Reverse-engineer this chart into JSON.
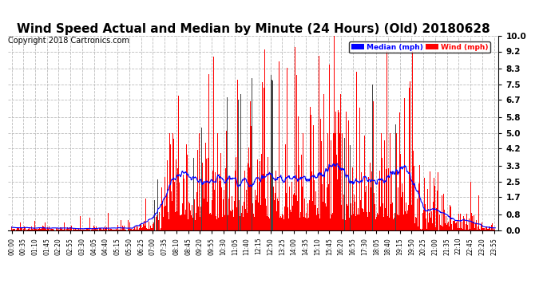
{
  "title": "Wind Speed Actual and Median by Minute (24 Hours) (Old) 20180628",
  "copyright": "Copyright 2018 Cartronics.com",
  "yticks": [
    0.0,
    0.8,
    1.7,
    2.5,
    3.3,
    4.2,
    5.0,
    5.8,
    6.7,
    7.5,
    8.3,
    9.2,
    10.0
  ],
  "ylim": [
    0.0,
    10.0
  ],
  "legend_median_label": "Median (mph)",
  "legend_wind_label": "Wind (mph)",
  "legend_median_color": "#0000ff",
  "legend_wind_color": "#ff0000",
  "background_color": "#ffffff",
  "grid_color": "#bbbbbb",
  "title_fontsize": 11,
  "copyright_fontsize": 7,
  "wind_color": "#ff0000",
  "dark_color": "#444444",
  "median_color": "#0000ff",
  "bar_width": 1.0
}
